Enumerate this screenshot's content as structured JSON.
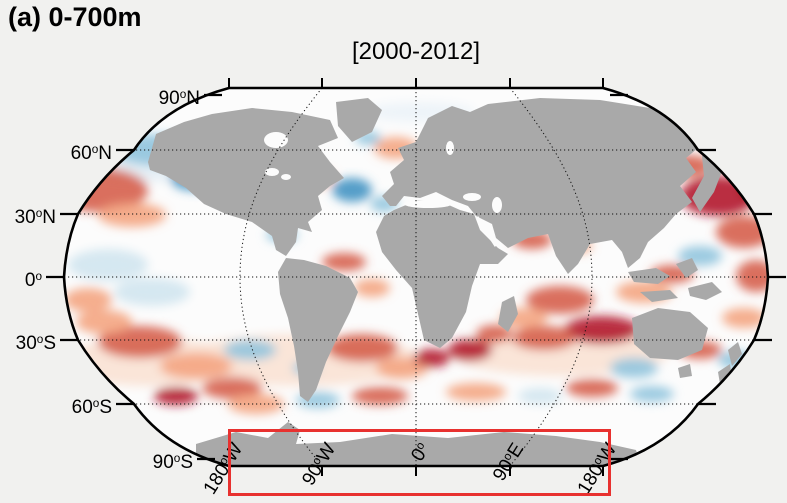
{
  "figure": {
    "panel_label": "(a) 0-700m",
    "period_label": "[2000-2012]"
  },
  "map": {
    "projection": "robinson",
    "degree_symbol": "o",
    "lat_labels": [
      {
        "value": "90",
        "hem": "N"
      },
      {
        "value": "60",
        "hem": "N"
      },
      {
        "value": "30",
        "hem": "N"
      },
      {
        "value": "0",
        "hem": ""
      },
      {
        "value": "30",
        "hem": "S"
      },
      {
        "value": "60",
        "hem": "S"
      },
      {
        "value": "90",
        "hem": "S"
      }
    ],
    "lon_labels": [
      {
        "value": "180",
        "hem": "W"
      },
      {
        "value": "90",
        "hem": "W"
      },
      {
        "value": "0",
        "hem": ""
      },
      {
        "value": "90",
        "hem": "E"
      },
      {
        "value": "180",
        "hem": "W"
      }
    ],
    "colors": {
      "land": "#a9a9a9",
      "ocean": "#fcfcfc",
      "outline": "#000000",
      "graticule": "#111111",
      "highlight_box": "#e8312f",
      "warm_strong": "#b2182b",
      "warm_mid": "#d6604d",
      "warm_light": "#f4a582",
      "cool_strong": "#2166ac",
      "cool_mid": "#4393c3",
      "cool_light": "#92c5de",
      "cool_faint": "#d1e5f0"
    },
    "anomaly_blobs": [
      [
        150,
        162,
        85,
        20,
        "#e4eef5"
      ],
      [
        300,
        360,
        120,
        26,
        "#f9e2d4"
      ],
      [
        560,
        352,
        110,
        24,
        "#f9e2d4"
      ],
      [
        150,
        362,
        90,
        24,
        "#f9e2d4"
      ],
      [
        420,
        112,
        55,
        10,
        "#ecf3f8"
      ],
      [
        100,
        190,
        48,
        22,
        "#d6604d"
      ],
      [
        86,
        160,
        26,
        14,
        "#f4a582"
      ],
      [
        158,
        150,
        44,
        16,
        "#92c5de"
      ],
      [
        196,
        178,
        26,
        13,
        "#4393c3"
      ],
      [
        132,
        215,
        34,
        12,
        "#f4a582"
      ],
      [
        108,
        265,
        40,
        16,
        "#d1e5f0"
      ],
      [
        152,
        292,
        38,
        14,
        "#d1e5f0"
      ],
      [
        88,
        300,
        24,
        12,
        "#f4a582"
      ],
      [
        140,
        342,
        42,
        16,
        "#d6604d"
      ],
      [
        104,
        322,
        28,
        12,
        "#f4a582"
      ],
      [
        196,
        366,
        36,
        13,
        "#f4a582"
      ],
      [
        232,
        388,
        30,
        11,
        "#d6604d"
      ],
      [
        176,
        396,
        22,
        9,
        "#b2182b"
      ],
      [
        250,
        350,
        26,
        10,
        "#92c5de"
      ],
      [
        718,
        196,
        38,
        20,
        "#b2182b"
      ],
      [
        744,
        232,
        28,
        16,
        "#d6604d"
      ],
      [
        688,
        166,
        24,
        11,
        "#d6604d"
      ],
      [
        756,
        190,
        16,
        12,
        "#a50f15"
      ],
      [
        660,
        146,
        28,
        11,
        "#92c5de"
      ],
      [
        700,
        256,
        22,
        10,
        "#92c5de"
      ],
      [
        644,
        292,
        28,
        11,
        "#f4a582"
      ],
      [
        672,
        274,
        22,
        9,
        "#d6604d"
      ],
      [
        756,
        276,
        20,
        16,
        "#d6604d"
      ],
      [
        744,
        318,
        22,
        10,
        "#f4a582"
      ],
      [
        560,
        300,
        34,
        14,
        "#d6604d"
      ],
      [
        602,
        330,
        38,
        14,
        "#b2182b"
      ],
      [
        544,
        338,
        32,
        12,
        "#d6604d"
      ],
      [
        524,
        318,
        24,
        10,
        "#f4a582"
      ],
      [
        532,
        240,
        20,
        9,
        "#d6604d"
      ],
      [
        578,
        246,
        14,
        7,
        "#f4a582"
      ],
      [
        634,
        368,
        24,
        10,
        "#92c5de"
      ],
      [
        700,
        350,
        22,
        9,
        "#d6604d"
      ],
      [
        736,
        360,
        18,
        9,
        "#92c5de"
      ],
      [
        352,
        190,
        20,
        12,
        "#4393c3"
      ],
      [
        384,
        204,
        14,
        8,
        "#92c5de"
      ],
      [
        318,
        178,
        16,
        9,
        "#f4a582"
      ],
      [
        396,
        148,
        22,
        11,
        "#f4a582"
      ],
      [
        368,
        138,
        13,
        7,
        "#92c5de"
      ],
      [
        282,
        235,
        16,
        7,
        "#92c5de"
      ],
      [
        344,
        262,
        22,
        9,
        "#d6604d"
      ],
      [
        372,
        288,
        18,
        9,
        "#f4a582"
      ],
      [
        362,
        348,
        36,
        14,
        "#d6604d"
      ],
      [
        402,
        368,
        26,
        11,
        "#f4a582"
      ],
      [
        432,
        358,
        18,
        9,
        "#b2182b"
      ],
      [
        470,
        350,
        22,
        11,
        "#b2182b"
      ],
      [
        494,
        334,
        18,
        9,
        "#d6604d"
      ],
      [
        306,
        368,
        13,
        7,
        "#92c5de"
      ],
      [
        256,
        404,
        28,
        10,
        "#f4a582"
      ],
      [
        318,
        400,
        22,
        8,
        "#92c5de"
      ],
      [
        380,
        396,
        28,
        9,
        "#d6604d"
      ],
      [
        476,
        392,
        30,
        9,
        "#f4a582"
      ],
      [
        540,
        396,
        22,
        8,
        "#d1e5f0"
      ],
      [
        592,
        388,
        26,
        9,
        "#d6604d"
      ],
      [
        652,
        394,
        22,
        8,
        "#92c5de"
      ]
    ]
  }
}
